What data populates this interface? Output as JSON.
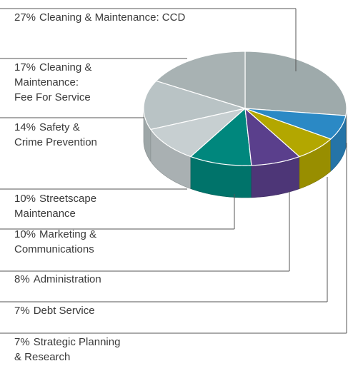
{
  "chart_data": {
    "type": "pie",
    "categories": [
      [
        "Cleaning & Maintenance: CCD"
      ],
      [
        "Cleaning &",
        "Maintenance:",
        "Fee For Service"
      ],
      [
        "Safety &",
        "Crime Prevention"
      ],
      [
        "Streetscape",
        "Maintenance"
      ],
      [
        "Marketing &",
        "Communications"
      ],
      [
        "Administration"
      ],
      [
        "Debt Service"
      ],
      [
        "Strategic Planning",
        "& Research"
      ]
    ],
    "values": [
      27,
      17,
      14,
      10,
      10,
      8,
      7,
      7
    ],
    "value_labels": [
      "27%",
      "17%",
      "14%",
      "10%",
      "10%",
      "8%",
      "7%",
      "7%"
    ],
    "colors": [
      "#9eaaab",
      "#a8b2b3",
      "#b9c3c5",
      "#c7cfd1",
      "#00877d",
      "#5a3f8c",
      "#b3a700",
      "#2b89c5"
    ]
  }
}
